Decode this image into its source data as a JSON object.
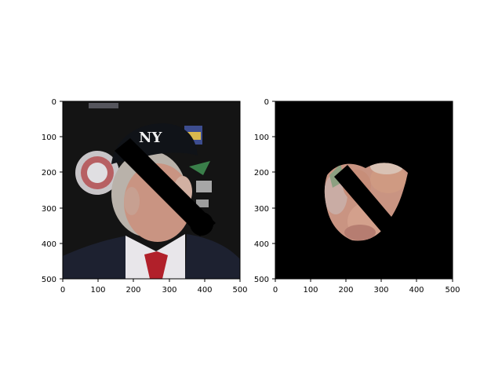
{
  "figure": {
    "background": "#ffffff"
  },
  "panels": [
    {
      "name": "left",
      "image": "original-photo",
      "x_ticks": [
        "0",
        "100",
        "200",
        "300",
        "400",
        "500"
      ],
      "y_ticks": [
        "0",
        "100",
        "200",
        "300",
        "400",
        "500"
      ]
    },
    {
      "name": "right",
      "image": "masked-photo",
      "x_ticks": [
        "0",
        "100",
        "200",
        "300",
        "400",
        "500"
      ],
      "y_ticks": [
        "0",
        "100",
        "200",
        "300",
        "400",
        "500"
      ]
    }
  ],
  "colors": {
    "photo_bg": "#141414",
    "skin": "#c99482",
    "hair": "#b9b2aa",
    "cap": "#101318",
    "shirt": "#e8e6ea",
    "tie": "#b1202a",
    "suit": "#1d2130",
    "mask_bg": "#000000",
    "black_band": "#000000"
  }
}
